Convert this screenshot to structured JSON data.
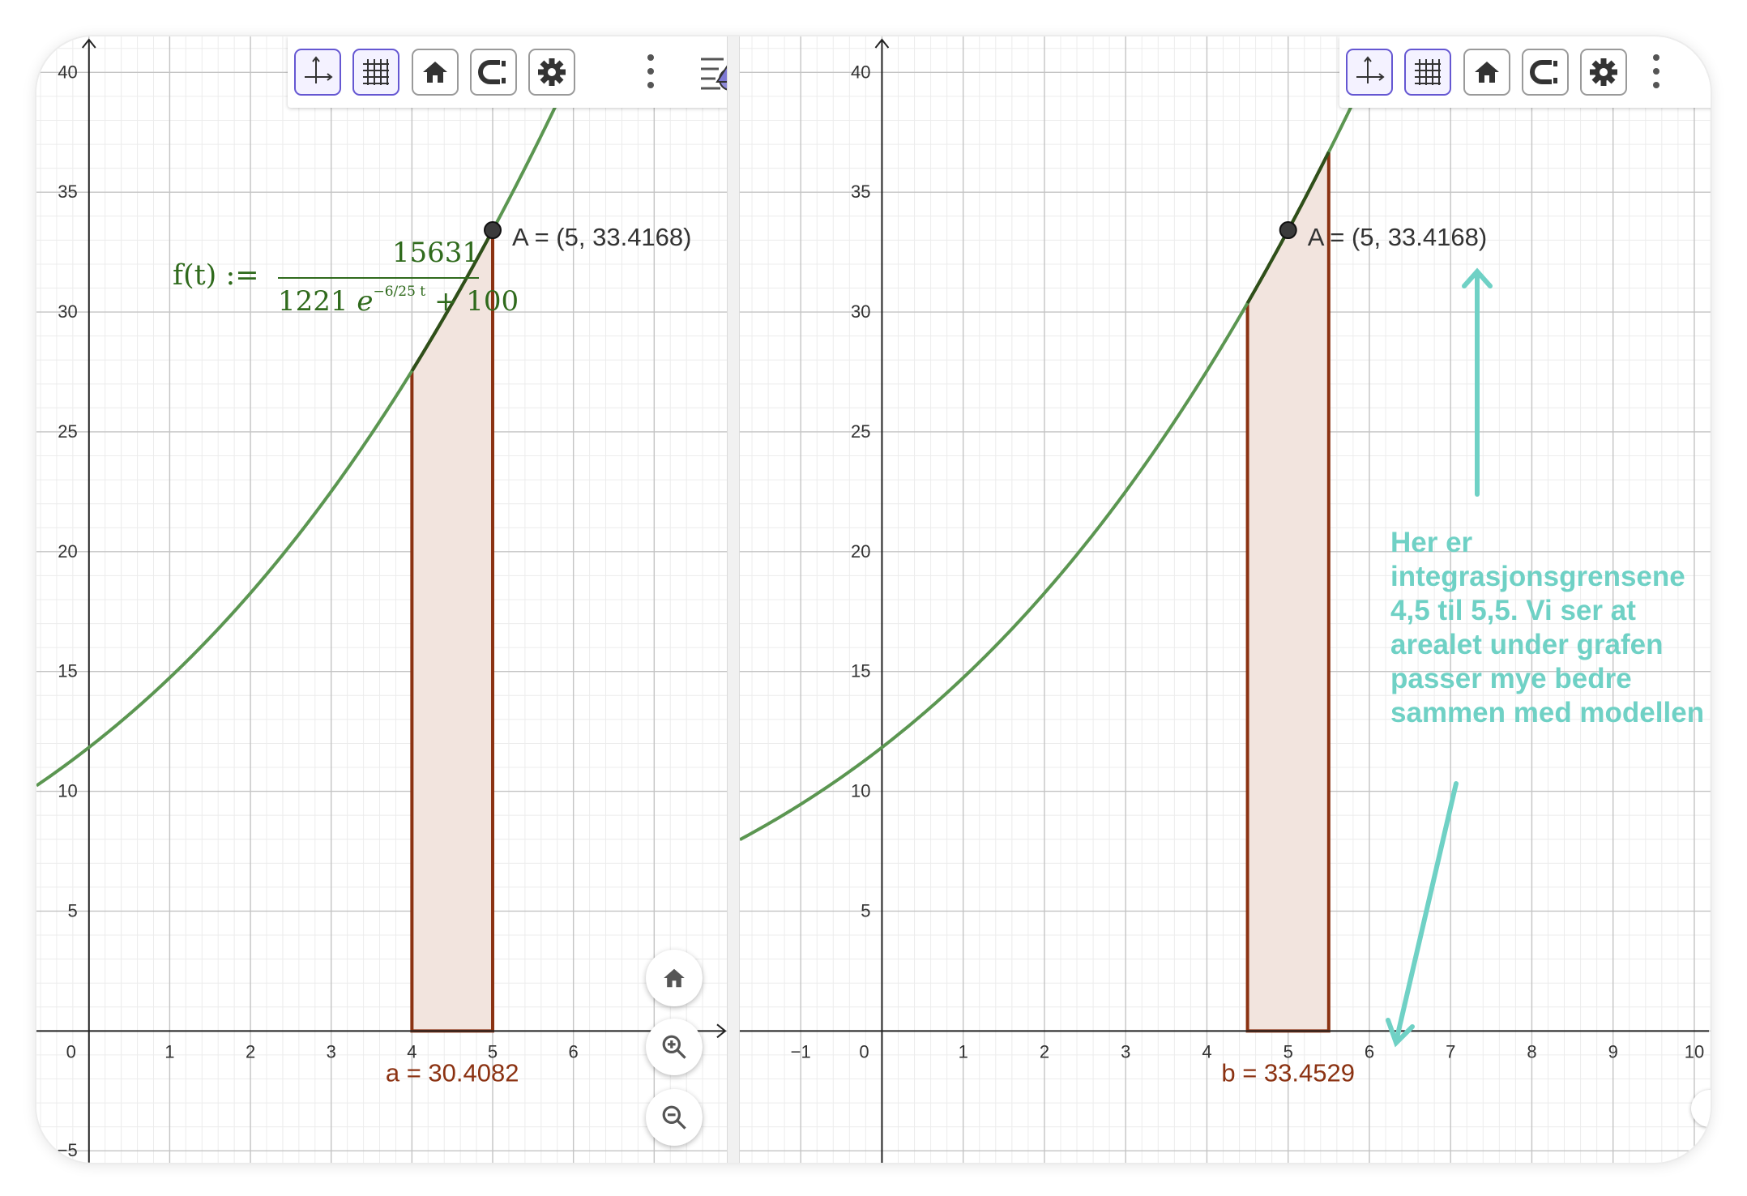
{
  "left_panel": {
    "x_tick_labels": [
      "0",
      "1",
      "2",
      "3",
      "4",
      "5",
      "6"
    ],
    "y_tick_labels": [
      "40",
      "35",
      "30",
      "25",
      "20",
      "15",
      "10",
      "5",
      "−5"
    ],
    "formula": {
      "lhs": "f(t) :=",
      "numerator": "15631",
      "denominator_coef": "1221",
      "exp_base": "e",
      "exp_power": "−6/25 t",
      "denominator_add": "+ 100"
    },
    "point_label": "A = (5, 33.4168)",
    "integral_label": "a = 30.4082"
  },
  "right_panel": {
    "x_tick_labels": [
      "−1",
      "0",
      "1",
      "2",
      "3",
      "4",
      "5",
      "6",
      "7",
      "8",
      "9",
      "10"
    ],
    "y_tick_labels": [
      "40",
      "35",
      "30",
      "25",
      "20",
      "15",
      "10",
      "5"
    ],
    "point_label": "A = (5, 33.4168)",
    "integral_label": "b = 33.4529",
    "annotation": "Her er integrasjonsgrensene 4,5 til 5,5. Vi ser at arealet under grafen passer mye bedre sammen med modellen"
  },
  "toolbar": {
    "icons": [
      "axes-icon",
      "grid-icon",
      "home-icon",
      "magnet-icon",
      "gear-icon",
      "more-vertical-icon",
      "style-bar-icon"
    ]
  },
  "chart_data": [
    {
      "type": "line",
      "function": "f(t) = 15631 / (1221 e^(-6/25 t) + 100)",
      "xlim": [
        -0.65,
        7.9
      ],
      "ylim": [
        -5.5,
        41.5
      ],
      "point": {
        "label": "A",
        "x": 5,
        "y": 33.4168
      },
      "integral": {
        "name": "a",
        "from": 4,
        "to": 5,
        "value": 30.4082
      },
      "grid": true
    },
    {
      "type": "line",
      "function": "f(t) = 15631 / (1221 e^(-6/25 t) + 100)",
      "xlim": [
        -1.75,
        10.2
      ],
      "ylim": [
        -5.5,
        41.5
      ],
      "point": {
        "label": "A",
        "x": 5,
        "y": 33.4168
      },
      "integral": {
        "name": "b",
        "from": 4.5,
        "to": 5.5,
        "value": 33.4529
      },
      "grid": true
    }
  ],
  "colors": {
    "curve": "#5b9651",
    "curve_dark": "#2f4f1a",
    "area_fill": "#f2e4de",
    "area_stroke": "#8b3212",
    "annotation": "#6fd1c5",
    "point": "#3b3b3b",
    "selected_button": "#6557d2"
  }
}
